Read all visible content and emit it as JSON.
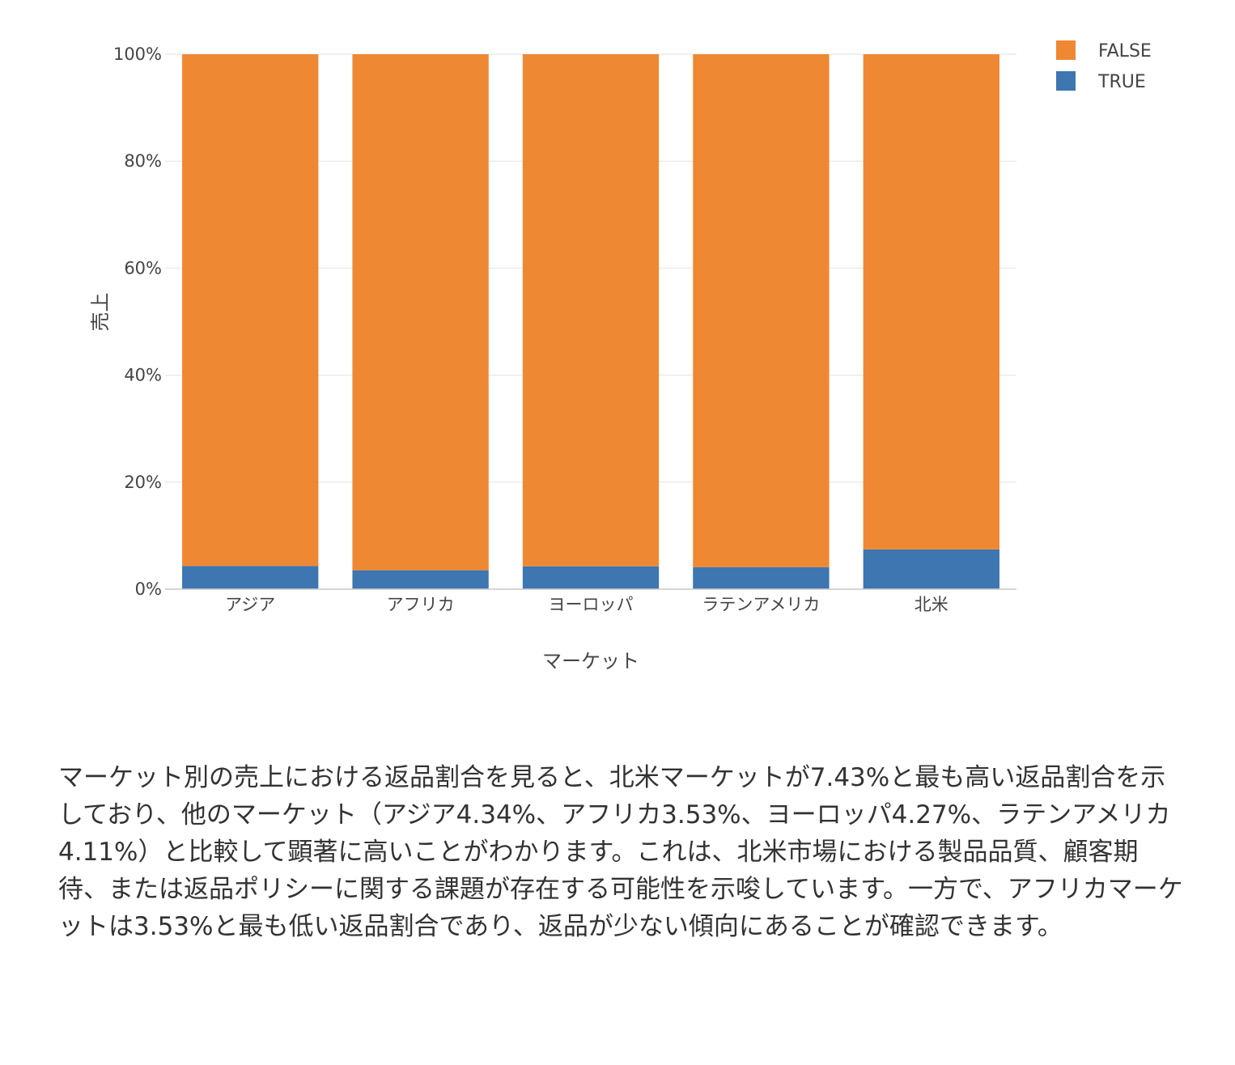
{
  "chart_data": {
    "type": "bar",
    "stacked": true,
    "normalized": true,
    "categories": [
      "アジア",
      "アフリカ",
      "ヨーロッパ",
      "ラテンアメリカ",
      "北米"
    ],
    "series": [
      {
        "name": "TRUE",
        "color": "#3d76b1",
        "values": [
          4.34,
          3.53,
          4.27,
          4.11,
          7.43
        ]
      },
      {
        "name": "FALSE",
        "color": "#ef8833",
        "values": [
          95.66,
          96.47,
          95.73,
          95.89,
          92.57
        ]
      }
    ],
    "legend_order": [
      "FALSE",
      "TRUE"
    ],
    "legend_position": "top-right",
    "xlabel": "マーケット",
    "ylabel": "売上",
    "ylim": [
      0,
      100
    ],
    "yticks": [
      0,
      20,
      40,
      60,
      80,
      100
    ],
    "ytick_labels": [
      "0%",
      "20%",
      "40%",
      "60%",
      "80%",
      "100%"
    ],
    "grid": true
  },
  "summary": {
    "text": "マーケット別の売上における返品割合を見ると、北米マーケットが7.43%と最も高い返品割合を示しており、他のマーケット（アジア4.34%、アフリカ3.53%、ヨーロッパ4.27%、ラテンアメリカ4.11%）と比較して顕著に高いことがわかります。これは、北米市場における製品品質、顧客期待、または返品ポリシーに関する課題が存在する可能性を示唆しています。一方で、アフリカマーケットは3.53%と最も低い返品割合であり、返品が少ない傾向にあることが確認できます。"
  }
}
